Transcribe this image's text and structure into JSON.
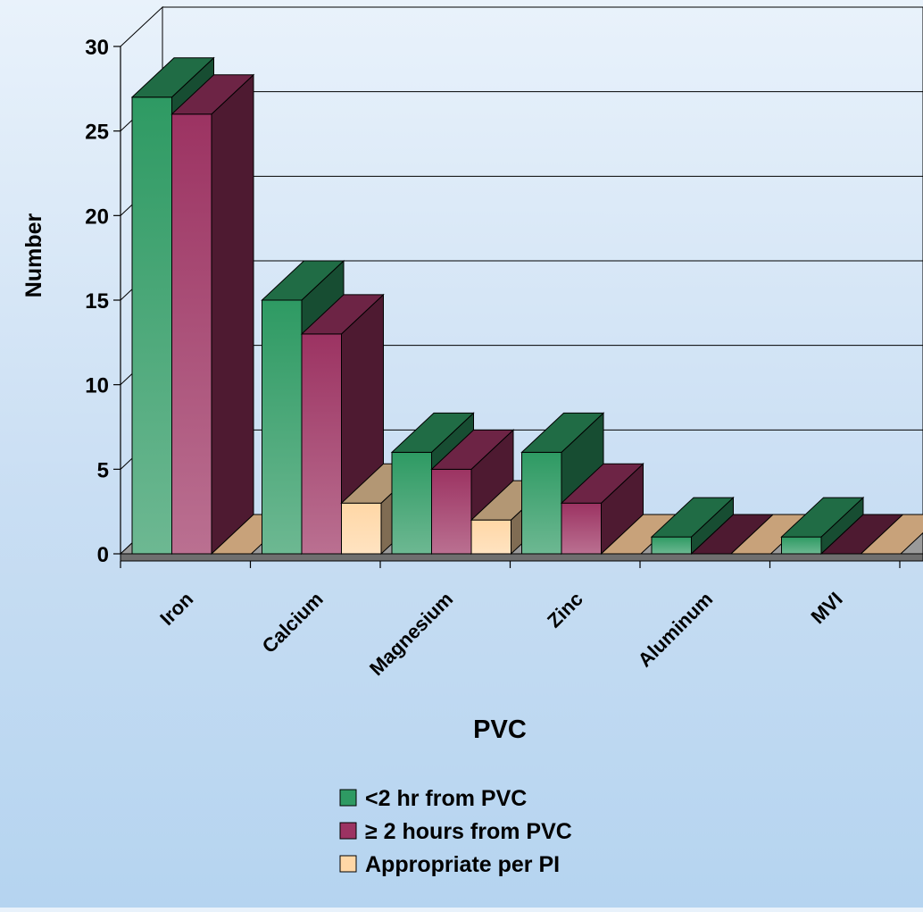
{
  "chart_data": {
    "type": "bar",
    "title": "",
    "xlabel": "PVC",
    "ylabel": "Number",
    "categories": [
      "Iron",
      "Calcium",
      "Magnesium",
      "Zinc",
      "Aluminum",
      "MVI"
    ],
    "ylim": [
      0,
      30
    ],
    "yticks": [
      "0",
      "5",
      "10",
      "15",
      "20",
      "25",
      "30"
    ],
    "grid": true,
    "legend_position": "bottom",
    "series": [
      {
        "name": "<2 hr from PVC",
        "values": [
          27,
          15,
          6,
          6,
          1,
          1
        ],
        "color": "#2e9a63"
      },
      {
        "name": "≥ 2 hours from PVC",
        "values": [
          26,
          13,
          5,
          3,
          0,
          0
        ],
        "color": "#9c3362"
      },
      {
        "name": "Appropriate per PI",
        "values": [
          0,
          3,
          2,
          0,
          0,
          0
        ],
        "color": "#ffd7a6"
      }
    ]
  }
}
